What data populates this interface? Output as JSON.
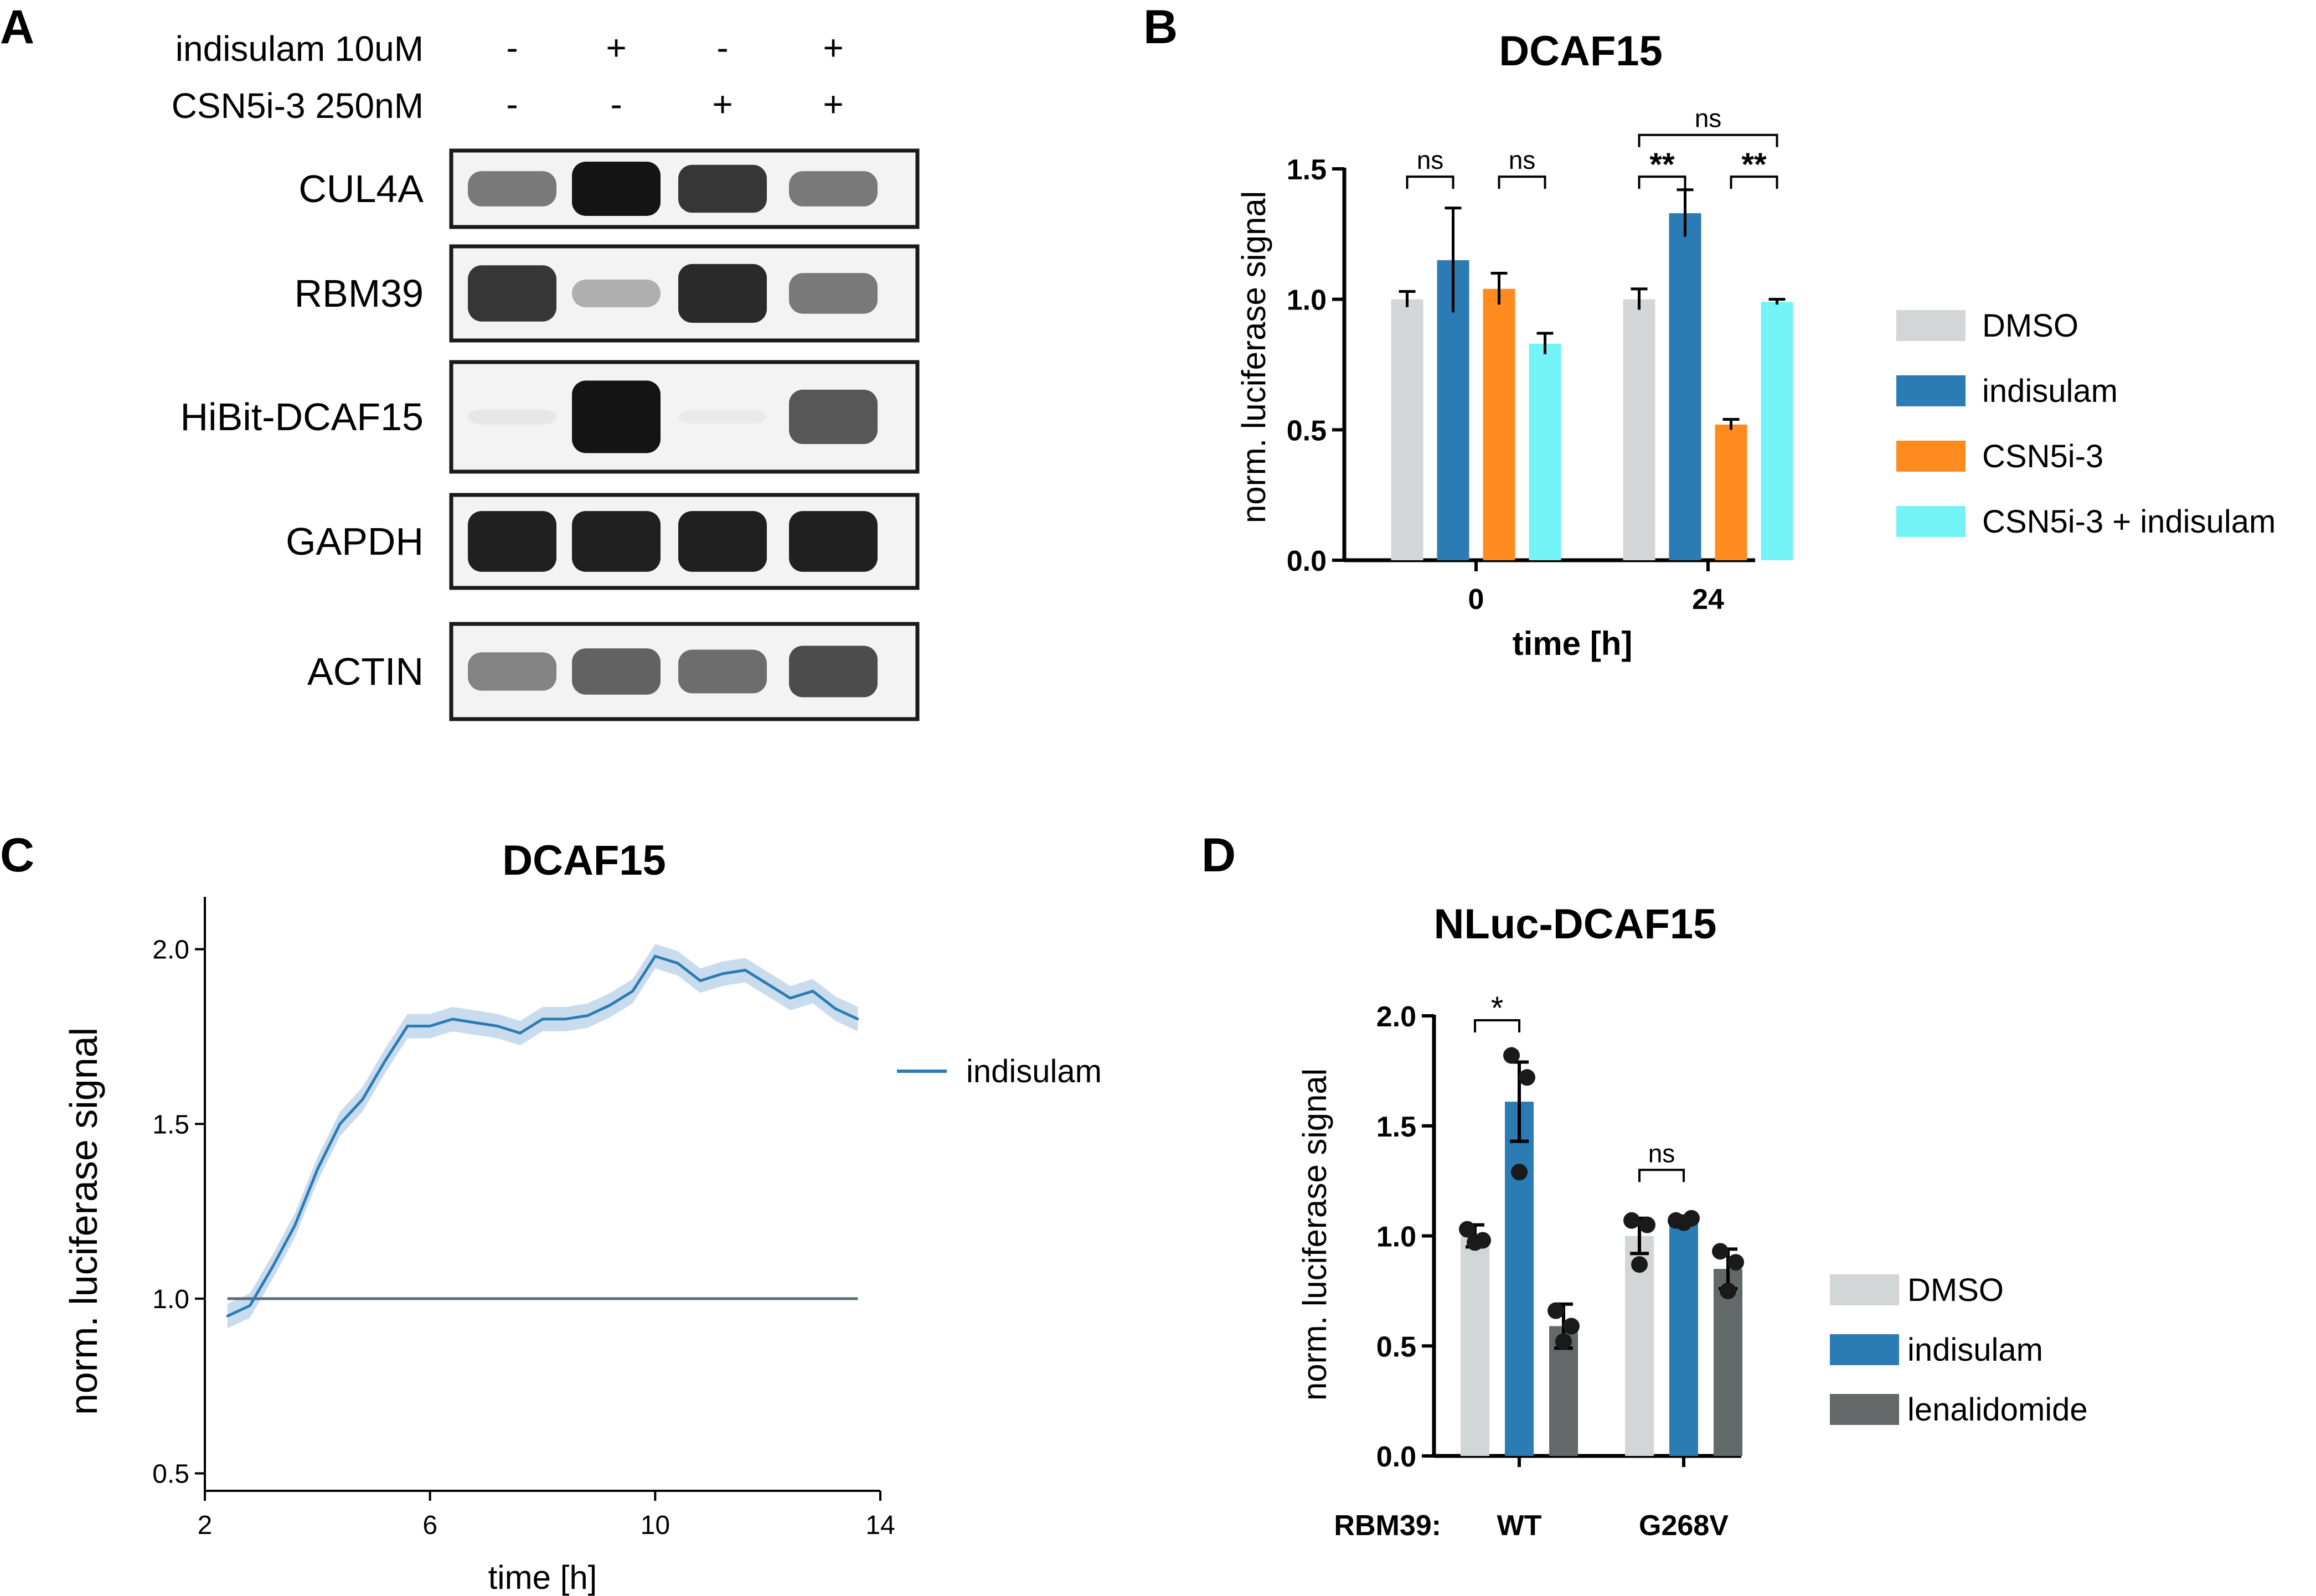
{
  "figure": {
    "panel_labels": [
      "A",
      "B",
      "C",
      "D"
    ]
  },
  "blot": {
    "treatments": [
      {
        "label": "indisulam 10uM",
        "signs": [
          "-",
          "+",
          "-",
          "+"
        ]
      },
      {
        "label": "CSN5i-3 250nM",
        "signs": [
          "-",
          "-",
          "+",
          "+"
        ]
      }
    ],
    "rows": [
      {
        "label": "CUL4A",
        "intensity": [
          0.55,
          1.0,
          0.85,
          0.55
        ]
      },
      {
        "label": "RBM39",
        "intensity": [
          0.85,
          0.3,
          0.9,
          0.55
        ]
      },
      {
        "label": "HiBit-DCAF15",
        "intensity": [
          0.05,
          1.0,
          0.02,
          0.7
        ]
      },
      {
        "label": "GAPDH",
        "intensity": [
          0.95,
          0.95,
          0.95,
          0.95
        ]
      },
      {
        "label": "ACTIN",
        "intensity": [
          0.5,
          0.65,
          0.6,
          0.75
        ]
      }
    ],
    "colors": {
      "band": "#141414",
      "membrane": "#f3f3f3",
      "frame": "#1a1a1a"
    }
  },
  "chart_data": [
    {
      "panel": "B",
      "type": "bar",
      "title": "DCAF15",
      "xlabel": "time [h]",
      "ylabel": "norm. luciferase signal",
      "categories": [
        "0",
        "24"
      ],
      "ylim": [
        0,
        1.5
      ],
      "yticks": [
        "0.0",
        "0.5",
        "1.0",
        "1.5"
      ],
      "series": [
        {
          "name": "DMSO",
          "color": "#d3d6d6",
          "values": [
            1.0,
            1.0
          ],
          "errors": [
            0.03,
            0.04
          ]
        },
        {
          "name": "indisulam",
          "color": "#2b7bb4",
          "values": [
            1.15,
            1.33
          ],
          "errors": [
            0.2,
            0.09
          ]
        },
        {
          "name": "CSN5i-3",
          "color": "#ff8a1d",
          "values": [
            1.04,
            0.52
          ],
          "errors": [
            0.06,
            0.02
          ]
        },
        {
          "name": "CSN5i-3 + indisulam",
          "color": "#74f3f6",
          "values": [
            0.83,
            0.99
          ],
          "errors": [
            0.04,
            0.01
          ]
        }
      ],
      "significance": [
        {
          "group": 0,
          "from": 0,
          "to": 1,
          "label": "ns",
          "level": 1.47
        },
        {
          "group": 0,
          "from": 2,
          "to": 3,
          "label": "ns",
          "level": 1.47
        },
        {
          "group": 1,
          "from": 0,
          "to": 1,
          "label": "**",
          "level": 1.47
        },
        {
          "group": 1,
          "from": 2,
          "to": 3,
          "label": "**",
          "level": 1.47
        },
        {
          "group": 1,
          "from": 0,
          "to": 3,
          "label": "ns",
          "level": 1.63
        }
      ],
      "legend": "right"
    },
    {
      "panel": "C",
      "type": "line",
      "title": "DCAF15",
      "xlabel": "time [h]",
      "ylabel": "norm. luciferase signal",
      "xlim": [
        2,
        14
      ],
      "ylim": [
        0.45,
        2.15
      ],
      "xticks": [
        "2",
        "6",
        "10",
        "14"
      ],
      "yticks": [
        "0.5",
        "1.0",
        "1.5",
        "2.0"
      ],
      "baseline": 1.0,
      "series": [
        {
          "name": "indisulam",
          "color": "#2b7bb4",
          "band_color": "#c9dcee",
          "x": [
            2.4,
            2.8,
            3.2,
            3.6,
            4.0,
            4.4,
            4.8,
            5.2,
            5.6,
            6.0,
            6.4,
            6.8,
            7.2,
            7.6,
            8.0,
            8.4,
            8.8,
            9.2,
            9.6,
            10.0,
            10.4,
            10.8,
            11.2,
            11.6,
            12.0,
            12.4,
            12.8,
            13.2,
            13.6
          ],
          "y": [
            0.95,
            0.98,
            1.09,
            1.21,
            1.37,
            1.5,
            1.57,
            1.68,
            1.78,
            1.78,
            1.8,
            1.79,
            1.78,
            1.76,
            1.8,
            1.8,
            1.81,
            1.84,
            1.88,
            1.98,
            1.96,
            1.91,
            1.93,
            1.94,
            1.9,
            1.86,
            1.88,
            1.83,
            1.8
          ],
          "band": 0.035
        }
      ],
      "legend": "right"
    },
    {
      "panel": "D",
      "type": "bar",
      "title": "NLuc-DCAF15",
      "xlabel": "",
      "group_axis_label": "RBM39:",
      "ylabel": "norm. luciferase signal",
      "categories": [
        "WT",
        "G268V"
      ],
      "ylim": [
        0,
        2.0
      ],
      "yticks": [
        "0.0",
        "0.5",
        "1.0",
        "1.5",
        "2.0"
      ],
      "series": [
        {
          "name": "DMSO",
          "color": "#d3d6d6",
          "values": [
            1.0,
            1.0
          ],
          "errors": [
            0.05,
            0.08
          ],
          "points": [
            [
              1.03,
              0.98,
              0.97
            ],
            [
              1.07,
              1.05,
              0.87
            ]
          ]
        },
        {
          "name": "indisulam",
          "color": "#2b7bb4",
          "values": [
            1.61,
            1.07
          ],
          "errors": [
            0.18,
            0.02
          ],
          "points": [
            [
              1.82,
              1.72,
              1.29
            ],
            [
              1.07,
              1.08,
              1.06
            ]
          ]
        },
        {
          "name": "lenalidomide",
          "color": "#636869",
          "values": [
            0.59,
            0.85
          ],
          "errors": [
            0.1,
            0.09
          ],
          "points": [
            [
              0.66,
              0.59,
              0.52
            ],
            [
              0.93,
              0.88,
              0.75
            ]
          ]
        }
      ],
      "significance": [
        {
          "group": 0,
          "from": 0,
          "to": 1,
          "label": "*",
          "level": 1.98
        },
        {
          "group": 1,
          "from": 0,
          "to": 1,
          "label": "ns",
          "level": 1.3
        }
      ],
      "legend": "right"
    }
  ]
}
